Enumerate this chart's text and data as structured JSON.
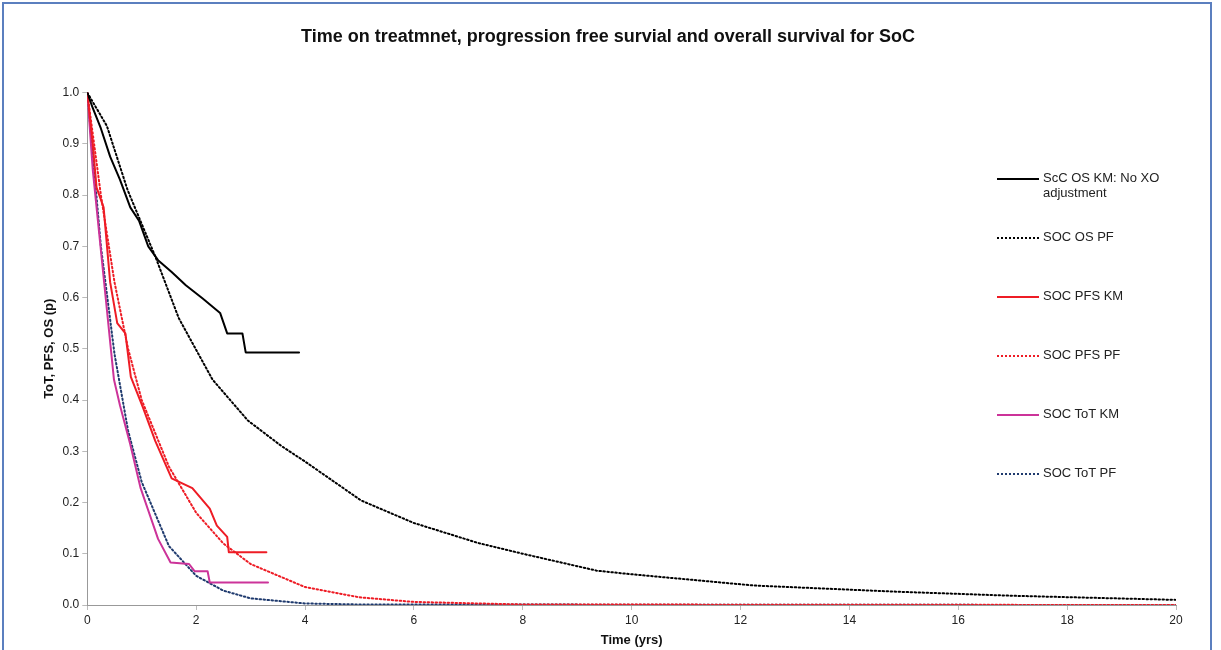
{
  "chart_data": {
    "type": "line",
    "title": "Time on treatmnet, progression free survial and overall survival for SoC",
    "xlabel": "Time (yrs)",
    "ylabel": "ToT, PFS, OS (p)",
    "xlim": [
      0,
      20
    ],
    "xticks": [
      0,
      2,
      4,
      6,
      8,
      10,
      12,
      14,
      16,
      18,
      20
    ],
    "ylim": [
      0,
      1
    ],
    "yticks": [
      {
        "value": 0,
        "label": "0.0"
      },
      {
        "value": 0.1,
        "label": "0.1"
      },
      {
        "value": 0.2,
        "label": "0.2"
      },
      {
        "value": 0.3,
        "label": "0.3"
      },
      {
        "value": 0.4,
        "label": "0.4"
      },
      {
        "value": 0.5,
        "label": "0.5"
      },
      {
        "value": 0.6,
        "label": "0.6"
      },
      {
        "value": 0.7,
        "label": "0.7"
      },
      {
        "value": 0.8,
        "label": "0.8"
      },
      {
        "value": 0.9,
        "label": "0.9"
      },
      {
        "value": 1,
        "label": "1.0"
      }
    ],
    "grid": false,
    "legend": "right",
    "marker": "none",
    "series": [
      {
        "name": "ScC OS KM: No XO adjustment",
        "color": "#000000",
        "line_style": "solid",
        "x": [
          0,
          0.1,
          0.25,
          0.42,
          0.6,
          0.79,
          0.95,
          1.12,
          1.3,
          1.55,
          1.81,
          2.12,
          2.44,
          2.57,
          2.85,
          2.91,
          3.89
        ],
        "values": [
          1,
          0.97,
          0.93,
          0.875,
          0.83,
          0.776,
          0.75,
          0.7,
          0.673,
          0.65,
          0.624,
          0.598,
          0.57,
          0.53,
          0.53,
          0.493,
          0.493
        ]
      },
      {
        "name": "SOC OS PF",
        "color": "#000000",
        "line_style": "dotted",
        "x": [
          0,
          0.36,
          0.74,
          1.25,
          1.68,
          2.3,
          2.95,
          3.57,
          4,
          5.03,
          6,
          7.18,
          8,
          9.36,
          10,
          12.25,
          14.86,
          17,
          20
        ],
        "values": [
          1,
          0.935,
          0.81,
          0.68,
          0.56,
          0.44,
          0.36,
          0.31,
          0.28,
          0.204,
          0.16,
          0.121,
          0.1,
          0.067,
          0.06,
          0.038,
          0.026,
          0.018,
          0.01
        ]
      },
      {
        "name": "SOC PFS KM",
        "color": "#ee1c25",
        "line_style": "solid",
        "x": [
          0,
          0.1,
          0.17,
          0.3,
          0.42,
          0.55,
          0.7,
          0.8,
          1.02,
          1.25,
          1.55,
          1.93,
          2.25,
          2.38,
          2.57,
          2.6,
          3.29
        ],
        "values": [
          1,
          0.9,
          0.815,
          0.776,
          0.63,
          0.55,
          0.53,
          0.445,
          0.386,
          0.32,
          0.247,
          0.228,
          0.188,
          0.155,
          0.133,
          0.103,
          0.103
        ]
      },
      {
        "name": "SOC PFS PF",
        "color": "#ee1c25",
        "line_style": "dotted",
        "x": [
          0,
          0.25,
          0.5,
          0.75,
          1,
          1.5,
          2,
          2.5,
          3,
          4,
          5,
          6,
          8,
          20
        ],
        "values": [
          1,
          0.8,
          0.63,
          0.5,
          0.4,
          0.27,
          0.18,
          0.12,
          0.08,
          0.035,
          0.015,
          0.006,
          0.001,
          0
        ]
      },
      {
        "name": "SOC ToT KM",
        "color": "#cc3399",
        "line_style": "solid",
        "x": [
          0,
          0.1,
          0.3,
          0.49,
          0.6,
          0.79,
          0.98,
          1.3,
          1.53,
          1.87,
          1.97,
          2.21,
          2.25,
          3.32
        ],
        "values": [
          1,
          0.85,
          0.64,
          0.44,
          0.39,
          0.313,
          0.228,
          0.129,
          0.083,
          0.08,
          0.066,
          0.066,
          0.044,
          0.044
        ]
      },
      {
        "name": "SOC ToT PF",
        "color": "#1f3a6e",
        "line_style": "dotted",
        "x": [
          0,
          0.25,
          0.5,
          0.75,
          1,
          1.5,
          2,
          2.5,
          3,
          4,
          5,
          20
        ],
        "values": [
          1,
          0.7,
          0.49,
          0.34,
          0.24,
          0.115,
          0.057,
          0.028,
          0.013,
          0.003,
          0.001,
          0
        ]
      }
    ]
  }
}
